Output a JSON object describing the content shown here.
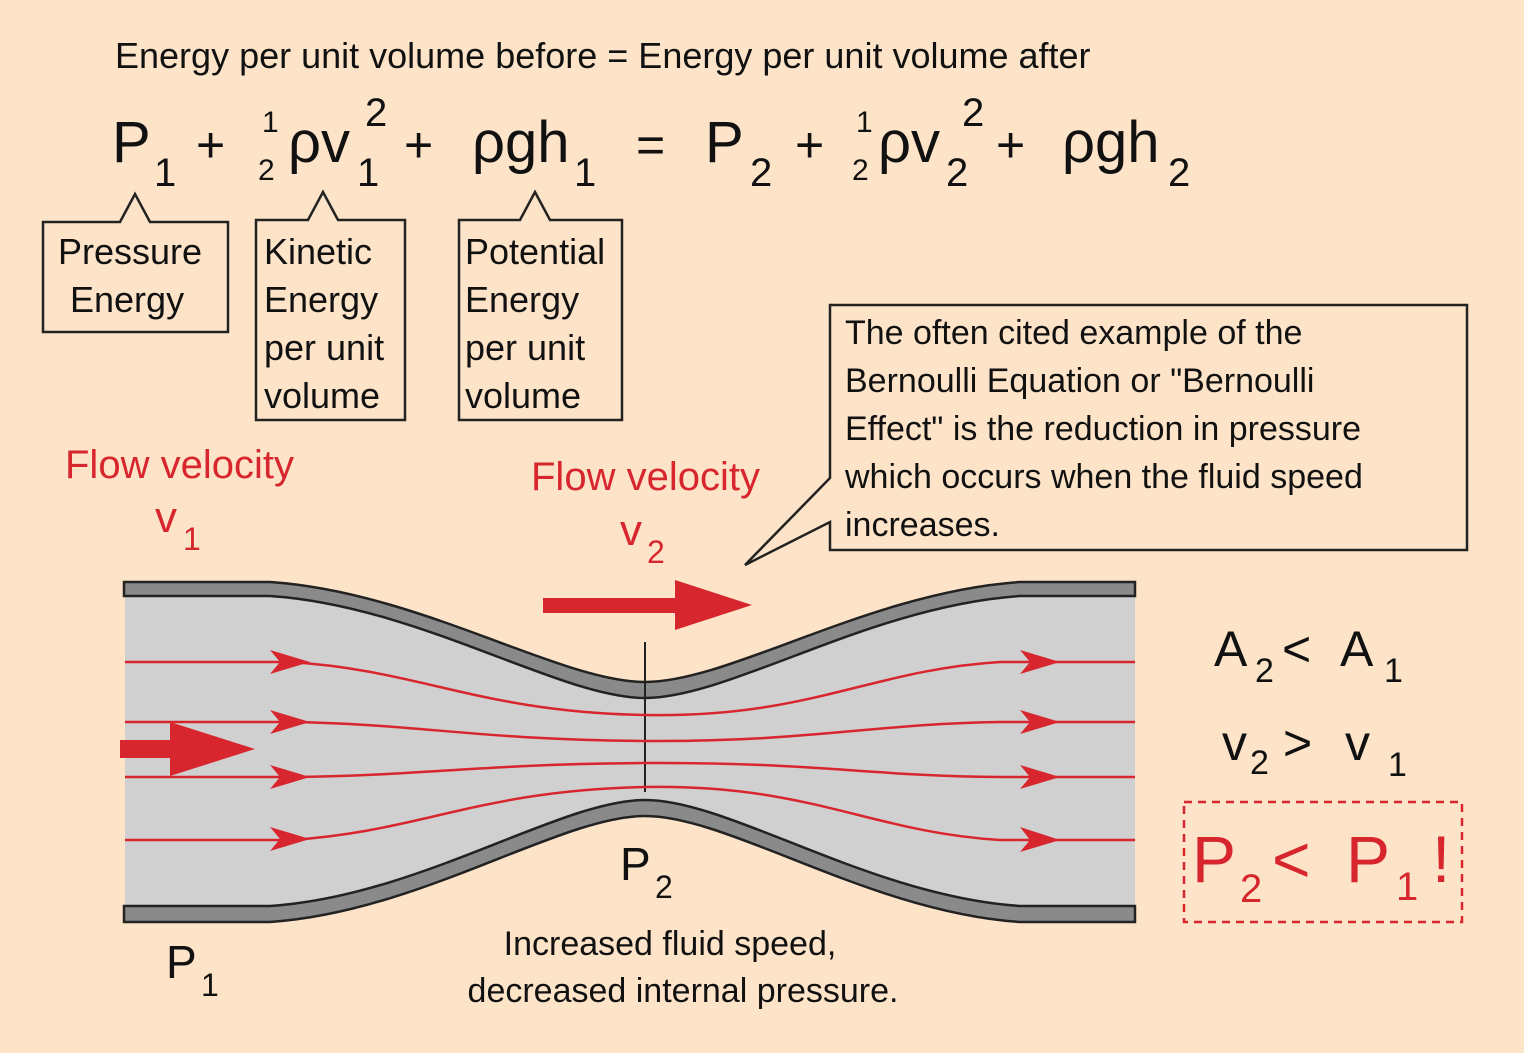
{
  "header": "Energy per unit volume before = Energy per unit volume after",
  "equation": {
    "P": "P",
    "sub1": "1",
    "sub2": "2",
    "plus": "+",
    "eq": "=",
    "half_num": "1",
    "half_den": "2",
    "rho_v": "ρv",
    "sq": "2",
    "rho_g_h": "ρgh"
  },
  "labels": {
    "pressure": [
      "Pressure",
      "Energy"
    ],
    "kinetic": [
      "Kinetic",
      "Energy",
      "per unit",
      "volume"
    ],
    "potential": [
      "Potential",
      "Energy",
      "per unit",
      "volume"
    ]
  },
  "callout": [
    "The often cited example of the",
    "Bernoulli Equation or \"Bernoulli",
    "Effect\" is the reduction in pressure",
    "which occurs when the fluid speed",
    "increases."
  ],
  "flow1": {
    "label": "Flow velocity",
    "v": "v",
    "sub": "1"
  },
  "flow2": {
    "label": "Flow velocity",
    "v": "v",
    "sub": "2"
  },
  "p1": {
    "p": "P",
    "sub": "1"
  },
  "p2": {
    "p": "P",
    "sub": "2"
  },
  "caption": [
    "Increased fluid speed,",
    "decreased internal pressure."
  ],
  "relations": {
    "area": {
      "a": "A",
      "s2": "2",
      "op": "<",
      "s1": "1"
    },
    "vel": {
      "v": "v",
      "s2": "2",
      "op": ">",
      "s1": "1"
    },
    "pressure": {
      "p": "P",
      "s2": "2",
      "op": "<",
      "s1": "1",
      "bang": "!"
    }
  },
  "colors": {
    "background": "#fde4c8",
    "accent": "#d8262e",
    "fluid": "#d0d0d0",
    "wall": "#8a8a8a"
  }
}
